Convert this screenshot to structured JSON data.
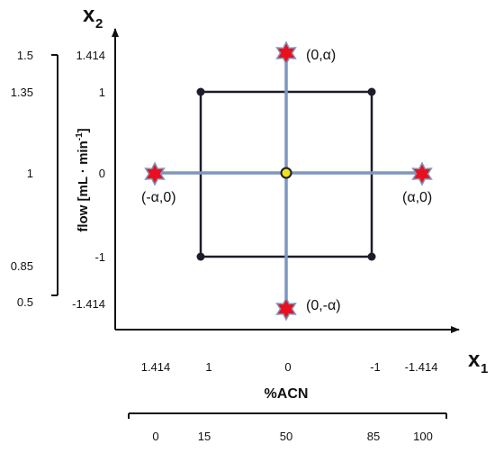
{
  "axes": {
    "x_axis_symbol": "x",
    "x_axis_subscript": "1",
    "y_axis_symbol": "x",
    "y_axis_subscript": "2",
    "x_coded_ticks": [
      "1.414",
      "1",
      "0",
      "-1",
      "-1.414"
    ],
    "y_coded_ticks": [
      "1.414",
      "1",
      "0",
      "-1",
      "-1.414"
    ]
  },
  "flow_scale": {
    "label": "flow  [mL · min",
    "label_superscript": "-1",
    "label_close": "]",
    "ticks": [
      "1.5",
      "1.35",
      "1",
      "0.85",
      "0.5"
    ]
  },
  "acn_scale": {
    "label": "%ACN",
    "ticks": [
      "0",
      "15",
      "50",
      "85",
      "100"
    ]
  },
  "points": {
    "top": "(0,α)",
    "bottom": "(0,-α)",
    "left": "(-α,0)",
    "right": "(α,0)"
  },
  "colors": {
    "square": "#1c1c2a",
    "cross": "#7f96bd",
    "star": "#e8101e",
    "star_outline": "#7f96bd",
    "center": "#f0e020",
    "axis": "#111111"
  }
}
